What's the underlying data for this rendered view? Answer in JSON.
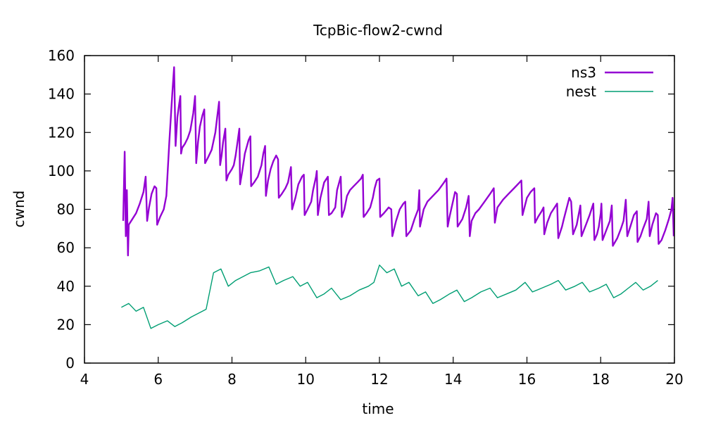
{
  "chart_data": {
    "type": "line",
    "title": "TcpBic-flow2-cwnd",
    "xlabel": "time",
    "ylabel": "cwnd",
    "xlim": [
      4,
      20
    ],
    "ylim": [
      0,
      160
    ],
    "xticks": [
      4,
      6,
      8,
      10,
      12,
      14,
      16,
      18,
      20
    ],
    "yticks": [
      0,
      20,
      40,
      60,
      80,
      100,
      120,
      140,
      160
    ],
    "grid": false,
    "legend_position": "top-right",
    "series": [
      {
        "name": "ns3",
        "color": "#9400d3",
        "points": [
          [
            5.05,
            74
          ],
          [
            5.09,
            110
          ],
          [
            5.12,
            66
          ],
          [
            5.15,
            90
          ],
          [
            5.18,
            56
          ],
          [
            5.2,
            72
          ],
          [
            5.3,
            75
          ],
          [
            5.4,
            78
          ],
          [
            5.5,
            83
          ],
          [
            5.6,
            89
          ],
          [
            5.66,
            97
          ],
          [
            5.7,
            74
          ],
          [
            5.75,
            81
          ],
          [
            5.82,
            88
          ],
          [
            5.9,
            92
          ],
          [
            5.95,
            91
          ],
          [
            5.97,
            72
          ],
          [
            6.05,
            76
          ],
          [
            6.15,
            80
          ],
          [
            6.22,
            87
          ],
          [
            6.3,
            115
          ],
          [
            6.38,
            140
          ],
          [
            6.43,
            154
          ],
          [
            6.47,
            113
          ],
          [
            6.52,
            128
          ],
          [
            6.57,
            135
          ],
          [
            6.6,
            139
          ],
          [
            6.62,
            109
          ],
          [
            6.65,
            112
          ],
          [
            6.72,
            114
          ],
          [
            6.8,
            117
          ],
          [
            6.87,
            121
          ],
          [
            6.95,
            130
          ],
          [
            7.0,
            139
          ],
          [
            7.03,
            104
          ],
          [
            7.08,
            115
          ],
          [
            7.13,
            123
          ],
          [
            7.2,
            129
          ],
          [
            7.25,
            132
          ],
          [
            7.27,
            104
          ],
          [
            7.35,
            107
          ],
          [
            7.45,
            111
          ],
          [
            7.55,
            120
          ],
          [
            7.6,
            128
          ],
          [
            7.65,
            136
          ],
          [
            7.68,
            103
          ],
          [
            7.72,
            108
          ],
          [
            7.76,
            115
          ],
          [
            7.82,
            122
          ],
          [
            7.85,
            95
          ],
          [
            7.9,
            98
          ],
          [
            8.0,
            101
          ],
          [
            8.05,
            103
          ],
          [
            8.1,
            108
          ],
          [
            8.15,
            115
          ],
          [
            8.2,
            122
          ],
          [
            8.22,
            93
          ],
          [
            8.28,
            100
          ],
          [
            8.35,
            109
          ],
          [
            8.45,
            116
          ],
          [
            8.5,
            118
          ],
          [
            8.52,
            92
          ],
          [
            8.6,
            94
          ],
          [
            8.7,
            97
          ],
          [
            8.8,
            103
          ],
          [
            8.85,
            109
          ],
          [
            8.9,
            113
          ],
          [
            8.92,
            87
          ],
          [
            8.98,
            95
          ],
          [
            9.05,
            101
          ],
          [
            9.12,
            105
          ],
          [
            9.2,
            108
          ],
          [
            9.25,
            106
          ],
          [
            9.27,
            86
          ],
          [
            9.35,
            88
          ],
          [
            9.45,
            91
          ],
          [
            9.52,
            94
          ],
          [
            9.6,
            102
          ],
          [
            9.63,
            80
          ],
          [
            9.72,
            86
          ],
          [
            9.8,
            93
          ],
          [
            9.9,
            97
          ],
          [
            9.95,
            98
          ],
          [
            9.97,
            77
          ],
          [
            10.05,
            80
          ],
          [
            10.15,
            84
          ],
          [
            10.2,
            90
          ],
          [
            10.28,
            97
          ],
          [
            10.3,
            100
          ],
          [
            10.33,
            77
          ],
          [
            10.4,
            86
          ],
          [
            10.5,
            94
          ],
          [
            10.6,
            97
          ],
          [
            10.63,
            77
          ],
          [
            10.7,
            78
          ],
          [
            10.8,
            81
          ],
          [
            10.85,
            90
          ],
          [
            10.95,
            97
          ],
          [
            10.98,
            76
          ],
          [
            11.05,
            80
          ],
          [
            11.12,
            87
          ],
          [
            11.2,
            90
          ],
          [
            11.3,
            92
          ],
          [
            11.4,
            94
          ],
          [
            11.5,
            96
          ],
          [
            11.55,
            98
          ],
          [
            11.57,
            76
          ],
          [
            11.65,
            78
          ],
          [
            11.75,
            81
          ],
          [
            11.82,
            86
          ],
          [
            11.87,
            91
          ],
          [
            11.93,
            95
          ],
          [
            12.0,
            96
          ],
          [
            12.02,
            76
          ],
          [
            12.12,
            78
          ],
          [
            12.25,
            81
          ],
          [
            12.32,
            80
          ],
          [
            12.35,
            66
          ],
          [
            12.45,
            74
          ],
          [
            12.55,
            80
          ],
          [
            12.65,
            83
          ],
          [
            12.7,
            84
          ],
          [
            12.73,
            66
          ],
          [
            12.85,
            69
          ],
          [
            12.95,
            75
          ],
          [
            13.05,
            80
          ],
          [
            13.08,
            90
          ],
          [
            13.1,
            71
          ],
          [
            13.2,
            80
          ],
          [
            13.3,
            84
          ],
          [
            13.45,
            87
          ],
          [
            13.6,
            90
          ],
          [
            13.75,
            94
          ],
          [
            13.82,
            96
          ],
          [
            13.85,
            71
          ],
          [
            13.9,
            76
          ],
          [
            14.05,
            89
          ],
          [
            14.1,
            88
          ],
          [
            14.12,
            71
          ],
          [
            14.25,
            75
          ],
          [
            14.35,
            81
          ],
          [
            14.42,
            87
          ],
          [
            14.45,
            66
          ],
          [
            14.5,
            74
          ],
          [
            14.6,
            78
          ],
          [
            14.7,
            80
          ],
          [
            14.85,
            84
          ],
          [
            15.0,
            88
          ],
          [
            15.1,
            91
          ],
          [
            15.13,
            73
          ],
          [
            15.2,
            81
          ],
          [
            15.35,
            85
          ],
          [
            15.5,
            88
          ],
          [
            15.65,
            91
          ],
          [
            15.8,
            94
          ],
          [
            15.85,
            95
          ],
          [
            15.88,
            77
          ],
          [
            16.0,
            86
          ],
          [
            16.1,
            89
          ],
          [
            16.2,
            91
          ],
          [
            16.22,
            73
          ],
          [
            16.3,
            76
          ],
          [
            16.4,
            79
          ],
          [
            16.45,
            81
          ],
          [
            16.47,
            67
          ],
          [
            16.55,
            73
          ],
          [
            16.65,
            78
          ],
          [
            16.75,
            81
          ],
          [
            16.82,
            83
          ],
          [
            16.85,
            65
          ],
          [
            16.95,
            71
          ],
          [
            17.0,
            75
          ],
          [
            17.15,
            86
          ],
          [
            17.2,
            84
          ],
          [
            17.25,
            67
          ],
          [
            17.35,
            72
          ],
          [
            17.45,
            82
          ],
          [
            17.48,
            66
          ],
          [
            17.6,
            72
          ],
          [
            17.7,
            77
          ],
          [
            17.8,
            83
          ],
          [
            17.83,
            64
          ],
          [
            17.9,
            67
          ],
          [
            17.95,
            71
          ],
          [
            18.0,
            78
          ],
          [
            18.02,
            83
          ],
          [
            18.05,
            64
          ],
          [
            18.15,
            69
          ],
          [
            18.25,
            74
          ],
          [
            18.3,
            82
          ],
          [
            18.33,
            61
          ],
          [
            18.45,
            65
          ],
          [
            18.55,
            70
          ],
          [
            18.62,
            74
          ],
          [
            18.68,
            85
          ],
          [
            18.72,
            66
          ],
          [
            18.82,
            72
          ],
          [
            18.9,
            77
          ],
          [
            18.98,
            79
          ],
          [
            19.0,
            63
          ],
          [
            19.08,
            66
          ],
          [
            19.15,
            70
          ],
          [
            19.25,
            75
          ],
          [
            19.3,
            84
          ],
          [
            19.33,
            66
          ],
          [
            19.4,
            72
          ],
          [
            19.5,
            78
          ],
          [
            19.55,
            77
          ],
          [
            19.57,
            62
          ],
          [
            19.65,
            64
          ],
          [
            19.75,
            69
          ],
          [
            19.85,
            75
          ],
          [
            19.92,
            80
          ],
          [
            19.95,
            86
          ],
          [
            19.98,
            66
          ]
        ]
      },
      {
        "name": "nest",
        "color": "#009e73",
        "points": [
          [
            5.0,
            29
          ],
          [
            5.2,
            31
          ],
          [
            5.4,
            27
          ],
          [
            5.6,
            29
          ],
          [
            5.8,
            18
          ],
          [
            6.0,
            20
          ],
          [
            6.25,
            22
          ],
          [
            6.45,
            19
          ],
          [
            6.65,
            21
          ],
          [
            6.9,
            24
          ],
          [
            7.2,
            27
          ],
          [
            7.3,
            28
          ],
          [
            7.5,
            47
          ],
          [
            7.7,
            49
          ],
          [
            7.9,
            40
          ],
          [
            8.1,
            43
          ],
          [
            8.3,
            45
          ],
          [
            8.5,
            47
          ],
          [
            8.75,
            48
          ],
          [
            9.0,
            50
          ],
          [
            9.2,
            41
          ],
          [
            9.4,
            43
          ],
          [
            9.65,
            45
          ],
          [
            9.85,
            40
          ],
          [
            10.05,
            42
          ],
          [
            10.3,
            34
          ],
          [
            10.5,
            36
          ],
          [
            10.7,
            39
          ],
          [
            10.95,
            33
          ],
          [
            11.2,
            35
          ],
          [
            11.45,
            38
          ],
          [
            11.7,
            40
          ],
          [
            11.85,
            42
          ],
          [
            12.0,
            51
          ],
          [
            12.2,
            47
          ],
          [
            12.4,
            49
          ],
          [
            12.6,
            40
          ],
          [
            12.8,
            42
          ],
          [
            13.05,
            35
          ],
          [
            13.25,
            37
          ],
          [
            13.45,
            31
          ],
          [
            13.65,
            33
          ],
          [
            13.9,
            36
          ],
          [
            14.1,
            38
          ],
          [
            14.3,
            32
          ],
          [
            14.5,
            34
          ],
          [
            14.75,
            37
          ],
          [
            15.0,
            39
          ],
          [
            15.2,
            34
          ],
          [
            15.45,
            36
          ],
          [
            15.7,
            38
          ],
          [
            15.95,
            42
          ],
          [
            16.15,
            37
          ],
          [
            16.4,
            39
          ],
          [
            16.65,
            41
          ],
          [
            16.85,
            43
          ],
          [
            17.05,
            38
          ],
          [
            17.3,
            40
          ],
          [
            17.5,
            42
          ],
          [
            17.7,
            37
          ],
          [
            17.95,
            39
          ],
          [
            18.15,
            41
          ],
          [
            18.35,
            34
          ],
          [
            18.55,
            36
          ],
          [
            18.75,
            39
          ],
          [
            18.95,
            42
          ],
          [
            19.15,
            38
          ],
          [
            19.35,
            40
          ],
          [
            19.55,
            43
          ]
        ]
      }
    ]
  }
}
